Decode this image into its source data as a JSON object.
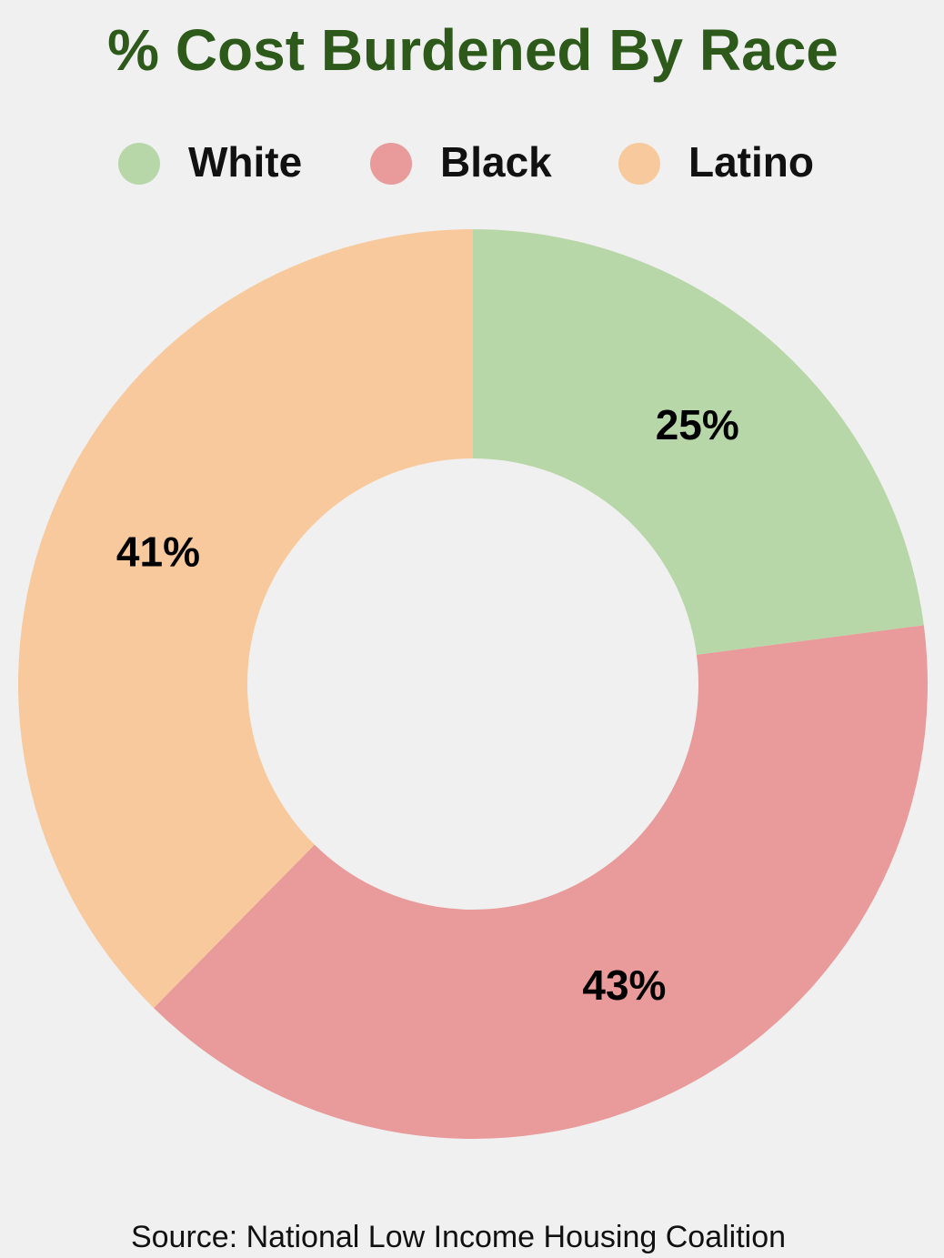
{
  "chart_data": {
    "type": "donut",
    "title": "% Cost Burdened By Race",
    "categories": [
      "White",
      "Black",
      "Latino"
    ],
    "values": [
      25,
      43,
      41
    ],
    "value_labels": [
      "25%",
      "43%",
      "41%"
    ],
    "colors": [
      "#b8d7a8",
      "#e99a9a",
      "#f8c99d"
    ],
    "source": "Source: National Low Income Housing Coalition"
  }
}
